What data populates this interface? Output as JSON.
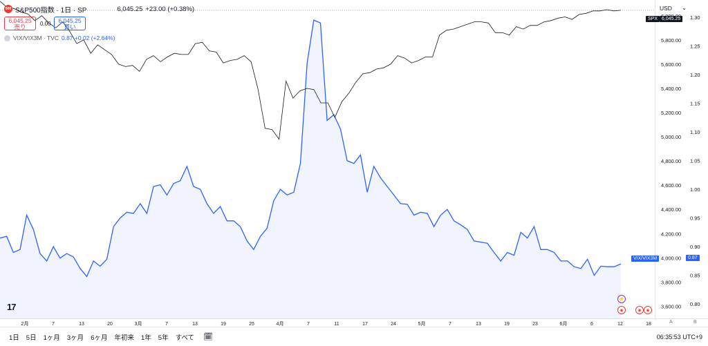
{
  "legend": {
    "symbol_badge": "500",
    "symbol_name": "S&P500指数 · 1日 · SP",
    "price": "6,045.25",
    "change": "+23.00 (+0.38%)",
    "sell_price": "6,045.25",
    "sell_label": "売り",
    "spread": "0.00",
    "buy_price": "6,045.25",
    "buy_label": "買い",
    "vix_name": "VIX/VIX3M · TVC",
    "vix_value": "0.87 +0.02 (+2.64%)"
  },
  "scale": {
    "currency": "USD",
    "dropdown_icon": "chevron-down-icon"
  },
  "tags": {
    "spx_label": "SPX",
    "spx_price": "6,045.25",
    "vix_label": "VIX/VIX3M",
    "vix_price": "0.87"
  },
  "colors": {
    "spx_line": "#131722",
    "vix_line": "#2962ff",
    "vix_fill": "#e8edff",
    "sell": "#f23645",
    "buy": "#2962ff"
  },
  "time_labels": [
    "2月",
    "7",
    "13",
    "20",
    "3月",
    "7",
    "13",
    "19",
    "25",
    "4月",
    "7",
    "11",
    "17",
    "24",
    "5月",
    "7",
    "13",
    "19",
    "23",
    "6月",
    "6",
    "12",
    "18"
  ],
  "axis_corner": [
    "A",
    "B"
  ],
  "ranges": [
    "1日",
    "5日",
    "1ヶ月",
    "3ヶ月",
    "6ヶ月",
    "年初来",
    "1年",
    "5年",
    "すべて"
  ],
  "clock": "06:35:53 UTC+9",
  "logo": "17",
  "event_icons": [
    "bolt-icon",
    "us-flag-icon",
    "us-flag-icon",
    "us-flag-icon"
  ],
  "chart_data": {
    "type": "line",
    "title": "S&P500指数 · 1日 · SP",
    "series": [
      {
        "name": "S&P500指数",
        "axis": "left",
        "values": [
          6120,
          6070,
          6060,
          6030,
          6015,
          5960,
          6000,
          5940,
          5900,
          5950,
          5870,
          5770,
          5800,
          5690,
          5760,
          5720,
          5680,
          5600,
          5580,
          5590,
          5540,
          5640,
          5670,
          5620,
          5660,
          5690,
          5680,
          5680,
          5770,
          5780,
          5710,
          5700,
          5610,
          5630,
          5640,
          5670,
          5620,
          5390,
          5070,
          5060,
          4980,
          5460,
          5320,
          5380,
          5400,
          5390,
          5280,
          5280,
          5160,
          5290,
          5360,
          5450,
          5520,
          5530,
          5560,
          5570,
          5600,
          5670,
          5650,
          5610,
          5630,
          5660,
          5660,
          5840,
          5880,
          5890,
          5910,
          5930,
          5950,
          5950,
          5940,
          5860,
          5860,
          5840,
          5910,
          5890,
          5920,
          5920,
          5950,
          5960,
          5980,
          5990,
          5970,
          6010,
          6020,
          6040,
          6040,
          6050,
          6040,
          6045
        ]
      },
      {
        "name": "VIX/VIX3M",
        "axis": "right",
        "values": [
          0.915,
          0.918,
          0.89,
          0.895,
          0.955,
          0.93,
          0.888,
          0.875,
          0.9,
          0.88,
          0.888,
          0.882,
          0.862,
          0.848,
          0.875,
          0.866,
          0.878,
          0.935,
          0.95,
          0.96,
          0.958,
          0.975,
          0.958,
          1.005,
          1.008,
          0.99,
          1.01,
          1.015,
          1.04,
          1.005,
          1.0,
          0.975,
          0.958,
          0.97,
          0.945,
          0.945,
          0.935,
          0.91,
          0.895,
          0.918,
          0.932,
          0.98,
          1.0,
          0.99,
          0.995,
          1.045,
          1.22,
          1.295,
          1.29,
          1.12,
          1.13,
          1.105,
          1.05,
          1.045,
          1.06,
          0.995,
          1.04,
          1.02,
          1.005,
          0.99,
          0.975,
          0.974,
          0.955,
          0.96,
          0.958,
          0.935,
          0.955,
          0.965,
          0.945,
          0.938,
          0.93,
          0.91,
          0.908,
          0.906,
          0.89,
          0.875,
          0.89,
          0.885,
          0.925,
          0.915,
          0.935,
          0.895,
          0.895,
          0.89,
          0.875,
          0.875,
          0.865,
          0.862,
          0.878,
          0.85,
          0.866,
          0.865,
          0.865,
          0.87
        ],
        "last": 0.87
      }
    ],
    "left_axis": {
      "ylim": [
        3500,
        6130
      ],
      "ticks": [
        "3,600.00",
        "3,800.00",
        "4,000.00",
        "4,200.00",
        "4,400.00",
        "4,600.00",
        "4,800.00",
        "5,000.00",
        "5,200.00",
        "5,400.00",
        "5,600.00",
        "5,800.00",
        "6,000.00"
      ]
    },
    "right_axis": {
      "ylim": [
        0.775,
        1.33
      ],
      "ticks": [
        "0.80",
        "0.85",
        "0.90",
        "0.95",
        "1.00",
        "1.05",
        "1.10",
        "1.15",
        "1.20",
        "1.25",
        "1.30"
      ]
    },
    "grid": false,
    "legend_placement": "top-left"
  }
}
